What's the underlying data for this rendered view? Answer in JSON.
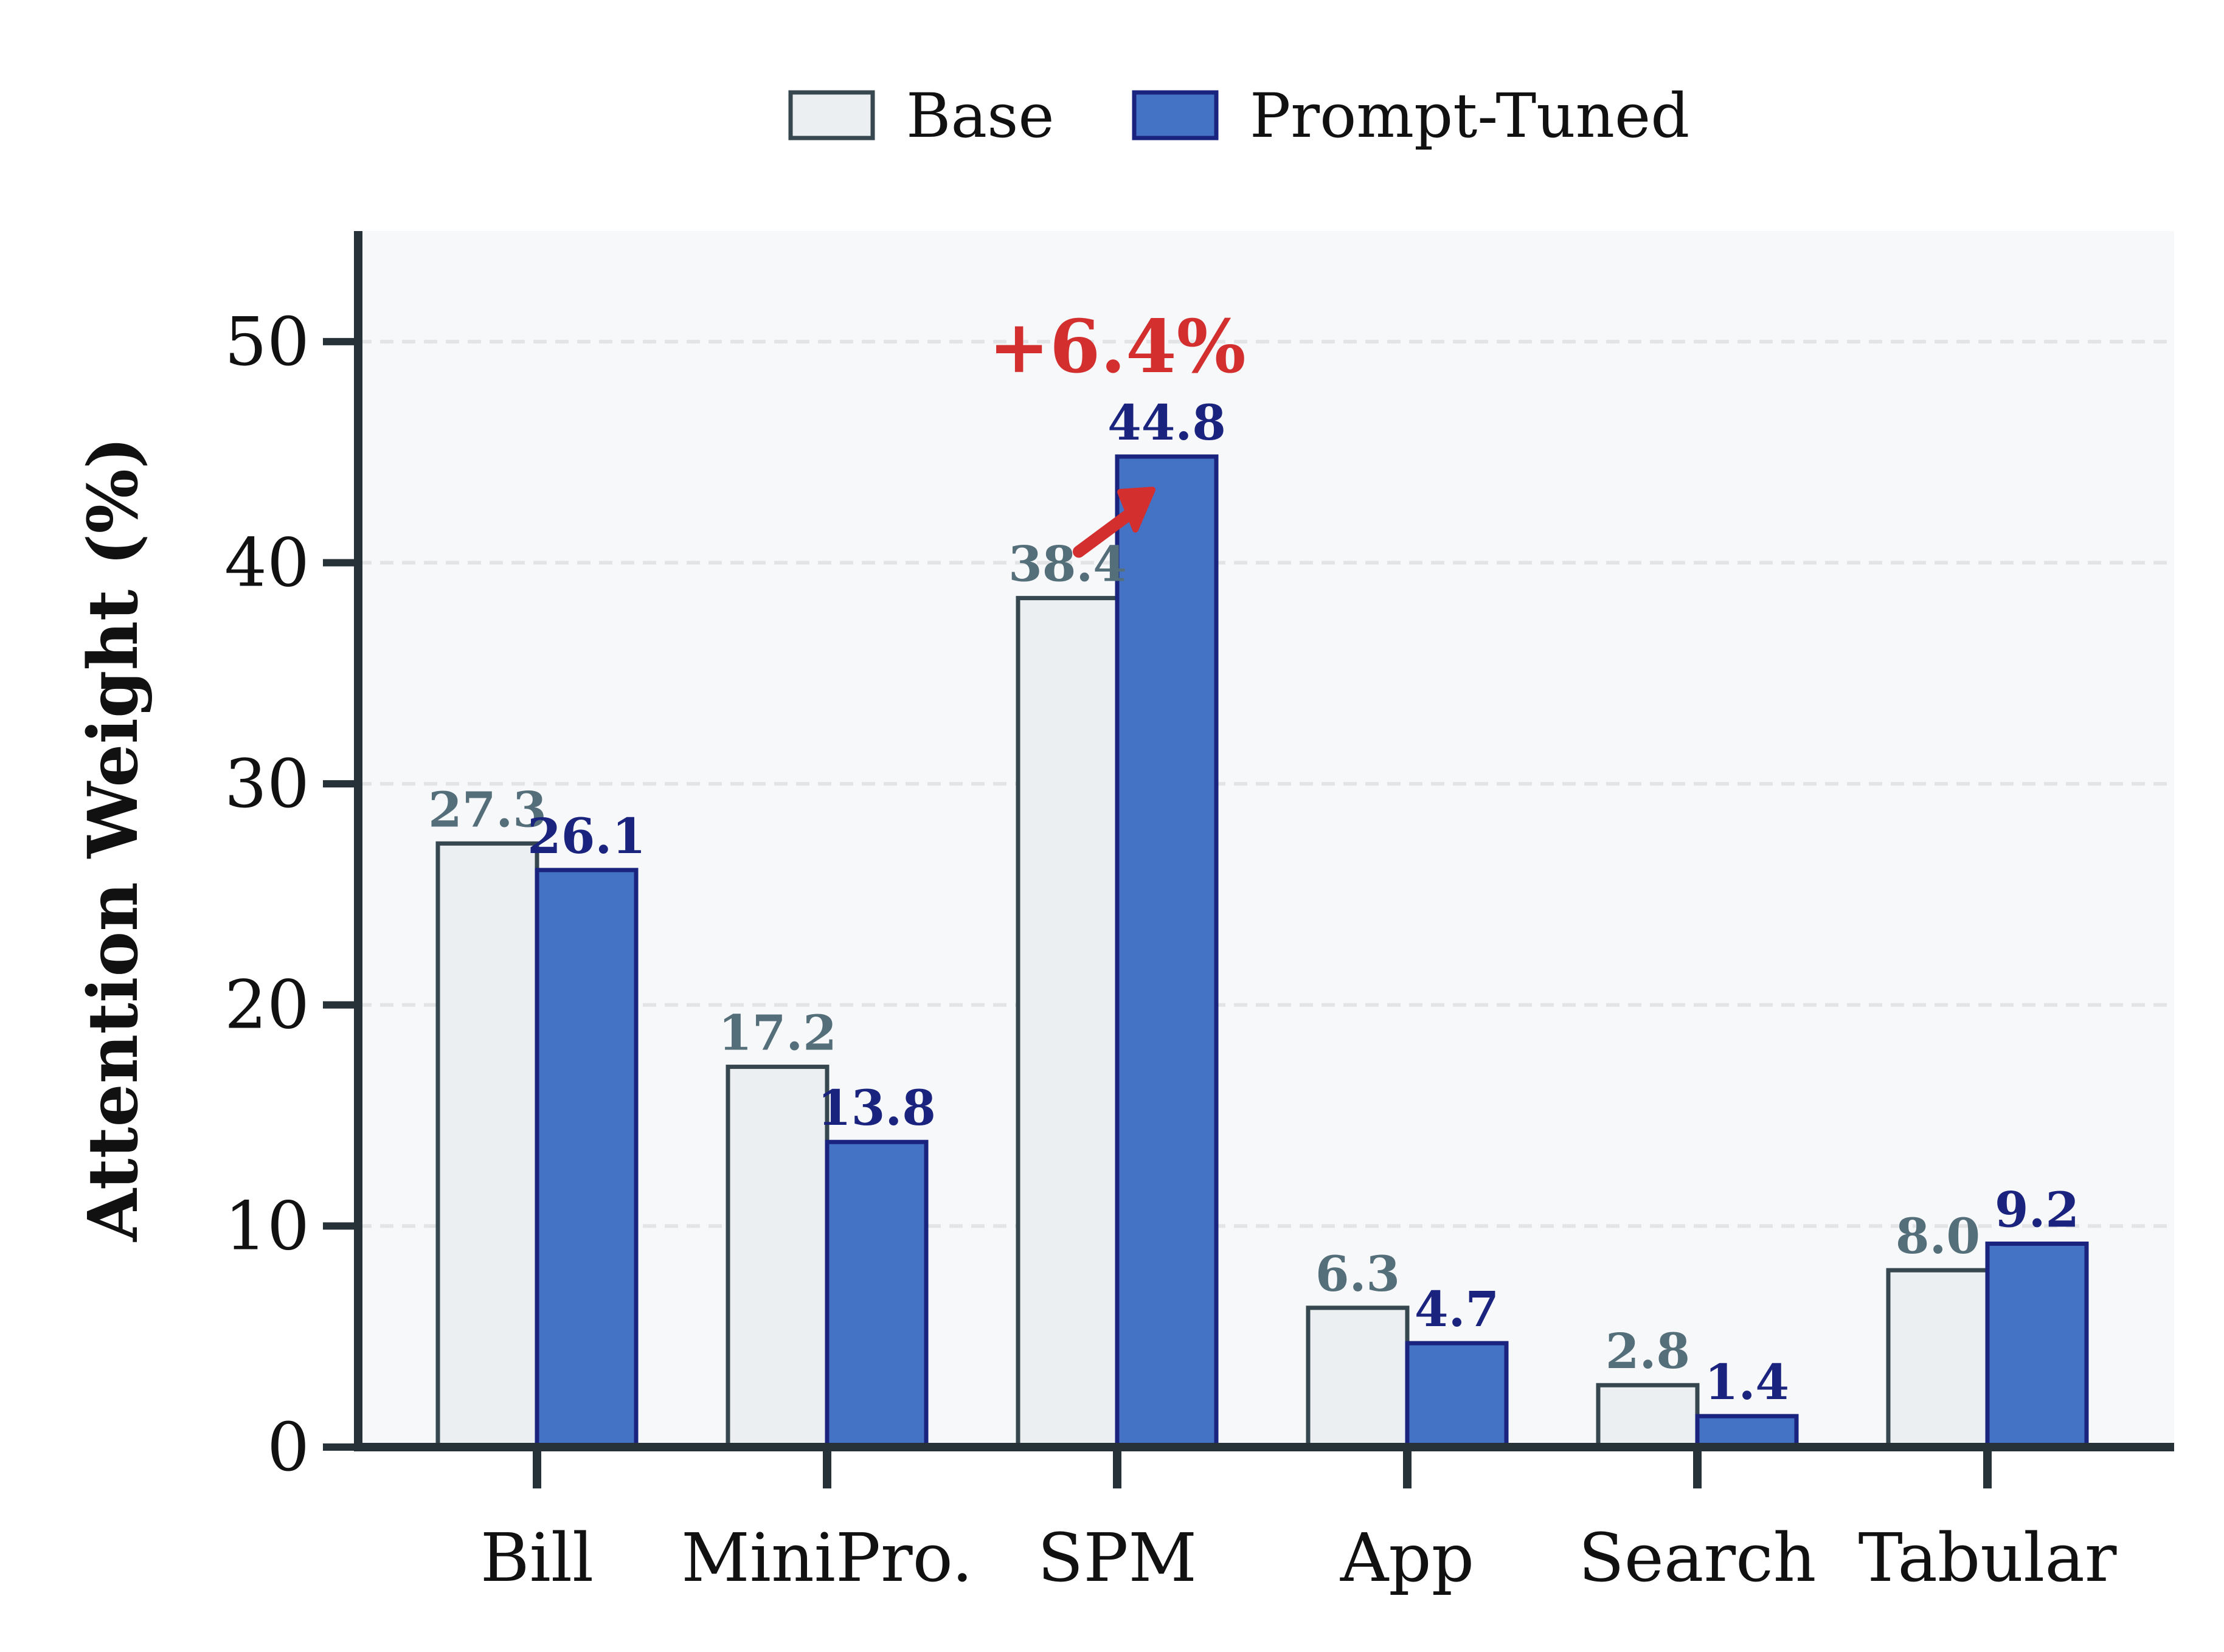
{
  "chart_data": {
    "type": "bar",
    "categories": [
      "Bill",
      "MiniPro.",
      "SPM",
      "App",
      "Search",
      "Tabular"
    ],
    "series": [
      {
        "name": "Base",
        "values": [
          27.3,
          17.2,
          38.4,
          6.3,
          2.8,
          8.0
        ],
        "labels": [
          "27.3",
          "17.2",
          "38.4",
          "6.3",
          "2.8",
          "8.0"
        ]
      },
      {
        "name": "Prompt-Tuned",
        "values": [
          26.1,
          13.8,
          44.8,
          4.7,
          1.4,
          9.2
        ],
        "labels": [
          "26.1",
          "13.8",
          "44.8",
          "4.7",
          "1.4",
          "9.2"
        ]
      }
    ],
    "title": "",
    "xlabel": "",
    "ylabel": "Attention Weight (%)",
    "ylim": [
      0,
      55
    ],
    "yticks": [
      0,
      10,
      20,
      30,
      40,
      50
    ],
    "grid": "y, dashed",
    "legend": "top-center",
    "annotation": {
      "text": "+6.4%",
      "category": "SPM"
    },
    "colors": {
      "base_fill": "#eceff1",
      "base_edge": "#37474f",
      "tuned_fill": "#4472c4",
      "tuned_edge": "#1a237e",
      "base_label": "#546e7a",
      "tuned_label": "#1a237e",
      "annotation": "#d32f2f",
      "axis": "#263238",
      "plot_bg": "#f7f8fa",
      "grid": "#e2e4e6"
    }
  }
}
